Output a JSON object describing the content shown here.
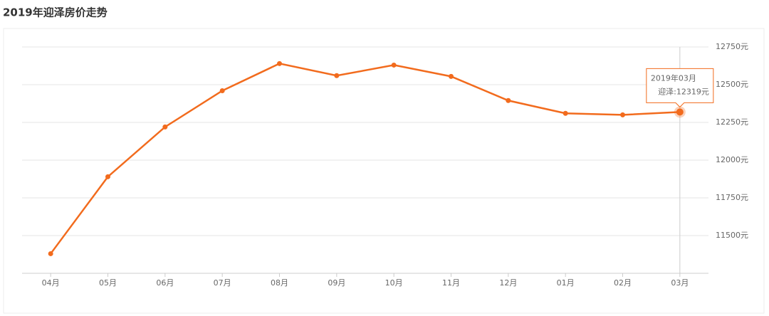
{
  "chart_data": {
    "type": "line",
    "title": "2019年迎泽房价走势",
    "categories": [
      "04月",
      "05月",
      "06月",
      "07月",
      "08月",
      "09月",
      "10月",
      "11月",
      "12月",
      "01月",
      "02月",
      "03月"
    ],
    "series": [
      {
        "name": "迎泽",
        "color": "#f26b1d",
        "values": [
          11380,
          11890,
          12220,
          12460,
          12640,
          12560,
          12630,
          12555,
          12395,
          12310,
          12300,
          12319
        ]
      }
    ],
    "ylim": [
      11250,
      12750
    ],
    "yticks": [
      {
        "value": 11500,
        "label": "11500元"
      },
      {
        "value": 11750,
        "label": "11750元"
      },
      {
        "value": 12000,
        "label": "12000元"
      },
      {
        "value": 12250,
        "label": "12250元"
      },
      {
        "value": 12500,
        "label": "12500元"
      },
      {
        "value": 12750,
        "label": "12750元"
      }
    ],
    "grid": true,
    "tooltip": {
      "index": 11,
      "title": "2019年03月",
      "label": "迎泽:12319元"
    }
  }
}
